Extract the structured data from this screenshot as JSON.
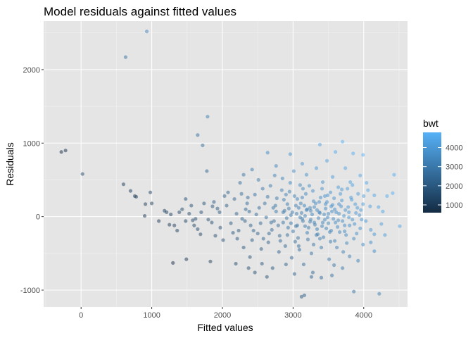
{
  "chart_data": {
    "type": "scatter",
    "title": "Model residuals against fitted values",
    "xlabel": "Fitted values",
    "ylabel": "Residuals",
    "xlim": [
      -530,
      4620
    ],
    "ylim": [
      -1230,
      2660
    ],
    "x_ticks": [
      0,
      1000,
      2000,
      3000,
      4000
    ],
    "x_tick_labels": [
      "0",
      "1000",
      "2000",
      "3000",
      "4000"
    ],
    "y_ticks": [
      -1000,
      0,
      1000,
      2000
    ],
    "y_tick_labels": [
      "-1000",
      "0",
      "1000",
      "2000"
    ],
    "grid": true,
    "background": "#e5e5e5",
    "point_opacity": 0.5,
    "legend": {
      "title": "bwt",
      "placement": "right",
      "type": "continuous-colorbar",
      "ticks": [
        1000,
        2000,
        3000,
        4000
      ],
      "tick_labels": [
        "1000",
        "2000",
        "3000",
        "4000"
      ],
      "range": [
        595,
        4791
      ],
      "color_low": "#132b43",
      "color_high": "#56b1f7"
    },
    "points": [
      [
        930,
        2520,
        3450
      ],
      [
        630,
        2170,
        2800
      ],
      [
        1790,
        1360,
        3150
      ],
      [
        1650,
        1110,
        2750
      ],
      [
        1720,
        970,
        2700
      ],
      [
        -280,
        880,
        595
      ],
      [
        -220,
        900,
        640
      ],
      [
        20,
        580,
        1600
      ],
      [
        1780,
        620,
        2400
      ],
      [
        3700,
        1020,
        4790
      ],
      [
        4430,
        570,
        4690
      ],
      [
        600,
        440,
        1040
      ],
      [
        700,
        350,
        1050
      ],
      [
        980,
        330,
        1330
      ],
      [
        760,
        280,
        1040
      ],
      [
        780,
        270,
        1060
      ],
      [
        910,
        170,
        1100
      ],
      [
        1000,
        180,
        1180
      ],
      [
        900,
        10,
        910
      ],
      [
        1210,
        60,
        1270
      ],
      [
        1270,
        30,
        1300
      ],
      [
        1430,
        100,
        1530
      ],
      [
        1480,
        240,
        1720
      ],
      [
        1530,
        40,
        1570
      ],
      [
        1580,
        -50,
        1530
      ],
      [
        1600,
        -120,
        1480
      ],
      [
        1650,
        -170,
        1480
      ],
      [
        1320,
        -120,
        1200
      ],
      [
        1360,
        -190,
        1170
      ],
      [
        1480,
        -60,
        1420
      ],
      [
        1700,
        60,
        1760
      ],
      [
        1850,
        -80,
        1770
      ],
      [
        1930,
        110,
        2040
      ],
      [
        1880,
        200,
        2080
      ],
      [
        1970,
        -150,
        1820
      ],
      [
        2030,
        280,
        2310
      ],
      [
        2080,
        330,
        2410
      ],
      [
        2150,
        -220,
        1930
      ],
      [
        2210,
        -300,
        1910
      ],
      [
        1300,
        -630,
        670
      ],
      [
        1490,
        -580,
        910
      ],
      [
        1830,
        -610,
        1220
      ],
      [
        2190,
        -640,
        1550
      ],
      [
        2370,
        -700,
        1670
      ],
      [
        2460,
        -760,
        1700
      ],
      [
        2560,
        -640,
        1920
      ],
      [
        2630,
        -820,
        1810
      ],
      [
        2710,
        -700,
        2010
      ],
      [
        3120,
        -1090,
        2030
      ],
      [
        3160,
        -1070,
        2090
      ],
      [
        3860,
        -1020,
        2840
      ],
      [
        4220,
        -1050,
        3170
      ],
      [
        3550,
        -800,
        2750
      ],
      [
        3400,
        -830,
        2570
      ],
      [
        3260,
        -820,
        2440
      ],
      [
        3700,
        -700,
        3000
      ],
      [
        3920,
        -600,
        3320
      ],
      [
        3800,
        -540,
        3260
      ],
      [
        4150,
        -470,
        3680
      ],
      [
        3990,
        -380,
        3610
      ],
      [
        4150,
        -240,
        3910
      ],
      [
        4300,
        -250,
        4050
      ],
      [
        4510,
        -130,
        4380
      ],
      [
        4270,
        70,
        4340
      ],
      [
        4330,
        280,
        4610
      ],
      [
        4410,
        320,
        4730
      ],
      [
        4150,
        290,
        4440
      ],
      [
        4090,
        140,
        4230
      ],
      [
        4040,
        460,
        4500
      ],
      [
        3950,
        560,
        4510
      ],
      [
        3850,
        860,
        4710
      ],
      [
        3990,
        840,
        4830
      ],
      [
        3600,
        880,
        4480
      ],
      [
        3380,
        980,
        4360
      ],
      [
        2960,
        850,
        3810
      ],
      [
        2640,
        870,
        3510
      ],
      [
        2420,
        640,
        3060
      ],
      [
        2300,
        570,
        2870
      ],
      [
        2250,
        460,
        2710
      ],
      [
        2510,
        500,
        3010
      ],
      [
        2760,
        690,
        3450
      ],
      [
        3130,
        720,
        3850
      ],
      [
        3480,
        760,
        4240
      ],
      [
        3740,
        660,
        4400
      ],
      [
        4210,
        130,
        4340
      ],
      [
        3840,
        430,
        4270
      ],
      [
        2550,
        -440,
        2110
      ],
      [
        2390,
        -550,
        1840
      ],
      [
        2900,
        -650,
        2250
      ],
      [
        3020,
        -780,
        2240
      ],
      [
        3580,
        -660,
        2920
      ],
      [
        3280,
        -760,
        2520
      ],
      [
        4100,
        -350,
        3750
      ],
      [
        4250,
        -100,
        4150
      ],
      [
        2330,
        100,
        2430
      ],
      [
        2400,
        -120,
        2280
      ],
      [
        2460,
        300,
        2760
      ],
      [
        2500,
        -230,
        2270
      ],
      [
        2600,
        180,
        2780
      ],
      [
        2650,
        -350,
        2300
      ],
      [
        2680,
        420,
        3100
      ],
      [
        2730,
        -60,
        2670
      ],
      [
        2770,
        250,
        3020
      ],
      [
        2800,
        -480,
        2320
      ],
      [
        2850,
        520,
        3370
      ],
      [
        2880,
        80,
        2960
      ],
      [
        2920,
        -250,
        2670
      ],
      [
        2950,
        340,
        3290
      ],
      [
        2980,
        -560,
        2420
      ],
      [
        3010,
        620,
        3630
      ],
      [
        3040,
        150,
        3190
      ],
      [
        3060,
        -120,
        2940
      ],
      [
        3080,
        -400,
        2680
      ],
      [
        3100,
        430,
        3530
      ],
      [
        3130,
        260,
        3390
      ],
      [
        3150,
        -650,
        2500
      ],
      [
        3170,
        10,
        3180
      ],
      [
        3190,
        570,
        3760
      ],
      [
        3210,
        -310,
        2900
      ],
      [
        3240,
        120,
        3360
      ],
      [
        3260,
        -500,
        2760
      ],
      [
        3280,
        350,
        3630
      ],
      [
        3300,
        -80,
        3220
      ],
      [
        3330,
        660,
        3990
      ],
      [
        3350,
        -240,
        3110
      ],
      [
        3370,
        200,
        3570
      ],
      [
        3400,
        -420,
        2980
      ],
      [
        3420,
        470,
        3890
      ],
      [
        3440,
        30,
        3470
      ],
      [
        3470,
        -160,
        3310
      ],
      [
        3490,
        290,
        3780
      ],
      [
        3510,
        -580,
        2930
      ],
      [
        3540,
        140,
        3680
      ],
      [
        3560,
        540,
        4100
      ],
      [
        3590,
        -330,
        3260
      ],
      [
        3610,
        60,
        3670
      ],
      [
        3640,
        400,
        4040
      ],
      [
        3660,
        -210,
        3450
      ],
      [
        3690,
        220,
        3910
      ],
      [
        3710,
        -480,
        3230
      ],
      [
        3740,
        90,
        3830
      ],
      [
        3770,
        380,
        4150
      ],
      [
        3800,
        -120,
        3680
      ],
      [
        3830,
        230,
        4060
      ],
      [
        3860,
        -300,
        3560
      ],
      [
        3890,
        50,
        3940
      ],
      [
        3920,
        310,
        4230
      ],
      [
        3950,
        -160,
        3790
      ],
      [
        3990,
        170,
        4160
      ],
      [
        4030,
        -60,
        3970
      ],
      [
        4060,
        360,
        4420
      ],
      [
        4100,
        -180,
        3920
      ],
      [
        2700,
        -180,
        2520
      ],
      [
        2760,
        70,
        2830
      ],
      [
        2820,
        -330,
        2490
      ],
      [
        2870,
        230,
        3100
      ],
      [
        2910,
        -20,
        2890
      ],
      [
        2960,
        460,
        3420
      ],
      [
        3000,
        -200,
        2800
      ],
      [
        3050,
        40,
        3090
      ],
      [
        3090,
        -450,
        2640
      ],
      [
        3110,
        180,
        3290
      ],
      [
        3140,
        -60,
        3080
      ],
      [
        3180,
        310,
        3490
      ],
      [
        3220,
        -150,
        3070
      ],
      [
        3250,
        80,
        3330
      ],
      [
        3290,
        -380,
        2910
      ],
      [
        3320,
        180,
        3500
      ],
      [
        3360,
        -20,
        3340
      ],
      [
        3390,
        260,
        3650
      ],
      [
        3430,
        -280,
        3150
      ],
      [
        3460,
        110,
        3570
      ],
      [
        3500,
        -90,
        3410
      ],
      [
        3530,
        330,
        3860
      ],
      [
        3570,
        -30,
        3540
      ],
      [
        3620,
        -420,
        3200
      ],
      [
        3650,
        170,
        3820
      ],
      [
        3700,
        -60,
        3640
      ],
      [
        3750,
        -250,
        3500
      ],
      [
        3780,
        130,
        3910
      ],
      [
        3810,
        470,
        4280
      ],
      [
        3870,
        -100,
        3770
      ],
      [
        3910,
        120,
        4030
      ],
      [
        3970,
        -40,
        3930
      ],
      [
        2200,
        40,
        2240
      ],
      [
        2280,
        -30,
        2250
      ],
      [
        2350,
        180,
        2530
      ],
      [
        2420,
        -320,
        2100
      ],
      [
        2480,
        30,
        2510
      ],
      [
        2540,
        -90,
        2450
      ],
      [
        2570,
        380,
        2950
      ],
      [
        2620,
        -10,
        2610
      ],
      [
        2660,
        -230,
        2430
      ],
      [
        2720,
        120,
        2840
      ],
      [
        2740,
        560,
        3300
      ],
      [
        2790,
        -120,
        2670
      ],
      [
        2840,
        360,
        3200
      ],
      [
        2890,
        -400,
        2490
      ],
      [
        2940,
        110,
        3050
      ],
      [
        2970,
        -90,
        2880
      ],
      [
        3020,
        280,
        3300
      ],
      [
        3070,
        -290,
        2780
      ],
      [
        3120,
        50,
        3170
      ],
      [
        3160,
        150,
        3310
      ],
      [
        3200,
        -220,
        2980
      ],
      [
        3230,
        420,
        3650
      ],
      [
        3270,
        30,
        3300
      ],
      [
        3310,
        -110,
        3200
      ],
      [
        3340,
        90,
        3430
      ],
      [
        3380,
        -300,
        3080
      ],
      [
        3410,
        380,
        3790
      ],
      [
        3450,
        -40,
        3410
      ],
      [
        3480,
        200,
        3680
      ],
      [
        3520,
        -210,
        3310
      ],
      [
        3550,
        70,
        3620
      ],
      [
        3580,
        250,
        3830
      ],
      [
        3630,
        -140,
        3490
      ],
      [
        3670,
        310,
        3980
      ],
      [
        3720,
        10,
        3730
      ],
      [
        3760,
        -360,
        3400
      ],
      [
        3820,
        260,
        4080
      ],
      [
        3880,
        170,
        4050
      ],
      [
        3940,
        20,
        3960
      ],
      [
        4000,
        280,
        4280
      ],
      [
        2300,
        -420,
        1880
      ],
      [
        2360,
        260,
        2620
      ],
      [
        2440,
        -190,
        2250
      ],
      [
        2520,
        120,
        2640
      ],
      [
        2580,
        -300,
        2280
      ],
      [
        2640,
        270,
        2910
      ],
      [
        2690,
        -80,
        2610
      ],
      [
        2750,
        150,
        2900
      ],
      [
        2810,
        -260,
        2550
      ],
      [
        2860,
        60,
        2920
      ],
      [
        2900,
        300,
        3200
      ],
      [
        2930,
        -150,
        2780
      ],
      [
        2970,
        20,
        2990
      ],
      [
        3030,
        -340,
        2690
      ],
      [
        3060,
        240,
        3300
      ],
      [
        3100,
        -10,
        3090
      ],
      [
        3140,
        380,
        3520
      ],
      [
        3170,
        -130,
        3040
      ],
      [
        3200,
        100,
        3300
      ],
      [
        3250,
        -40,
        3210
      ],
      [
        3290,
        210,
        3500
      ],
      [
        3330,
        -250,
        3080
      ],
      [
        3370,
        60,
        3430
      ],
      [
        3410,
        -130,
        3280
      ],
      [
        3450,
        280,
        3730
      ],
      [
        3490,
        -10,
        3480
      ],
      [
        3530,
        -340,
        3190
      ],
      [
        3560,
        160,
        3720
      ],
      [
        3600,
        -80,
        3520
      ],
      [
        3650,
        40,
        3690
      ],
      [
        3690,
        370,
        4060
      ],
      [
        3730,
        -120,
        3610
      ],
      [
        3790,
        60,
        3850
      ],
      [
        3840,
        -40,
        3800
      ],
      [
        3900,
        -230,
        3670
      ],
      [
        3960,
        90,
        4050
      ],
      [
        2860,
        -80,
        2780
      ],
      [
        2920,
        170,
        3090
      ],
      [
        2990,
        60,
        3050
      ],
      [
        3040,
        -130,
        2910
      ],
      [
        3080,
        120,
        3200
      ],
      [
        3130,
        -30,
        3100
      ],
      [
        3190,
        90,
        3280
      ],
      [
        3240,
        -70,
        3170
      ],
      [
        3300,
        130,
        3430
      ],
      [
        3340,
        -170,
        3170
      ],
      [
        3380,
        50,
        3430
      ],
      [
        3420,
        -80,
        3340
      ],
      [
        3460,
        170,
        3630
      ],
      [
        3500,
        40,
        3540
      ],
      [
        3540,
        -190,
        3350
      ],
      [
        3590,
        100,
        3690
      ],
      [
        3640,
        -50,
        3590
      ],
      [
        3680,
        140,
        3820
      ],
      [
        3730,
        -200,
        3530
      ],
      [
        3790,
        -10,
        3780
      ],
      [
        1100,
        -60,
        1040
      ],
      [
        1180,
        80,
        1260
      ],
      [
        1250,
        -110,
        1140
      ],
      [
        1390,
        60,
        1450
      ],
      [
        1560,
        150,
        1710
      ],
      [
        1620,
        -30,
        1590
      ],
      [
        1690,
        -240,
        1450
      ],
      [
        1740,
        180,
        1920
      ],
      [
        1800,
        -40,
        1760
      ],
      [
        1860,
        140,
        2000
      ],
      [
        1900,
        -260,
        1640
      ],
      [
        1960,
        60,
        2020
      ],
      [
        2010,
        -320,
        1690
      ],
      [
        2060,
        150,
        2210
      ],
      [
        2120,
        -90,
        2030
      ],
      [
        2170,
        240,
        2410
      ],
      [
        2230,
        -190,
        2040
      ],
      [
        2270,
        310,
        2580
      ],
      [
        2320,
        -60,
        2260
      ],
      [
        2380,
        70,
        2450
      ]
    ]
  }
}
